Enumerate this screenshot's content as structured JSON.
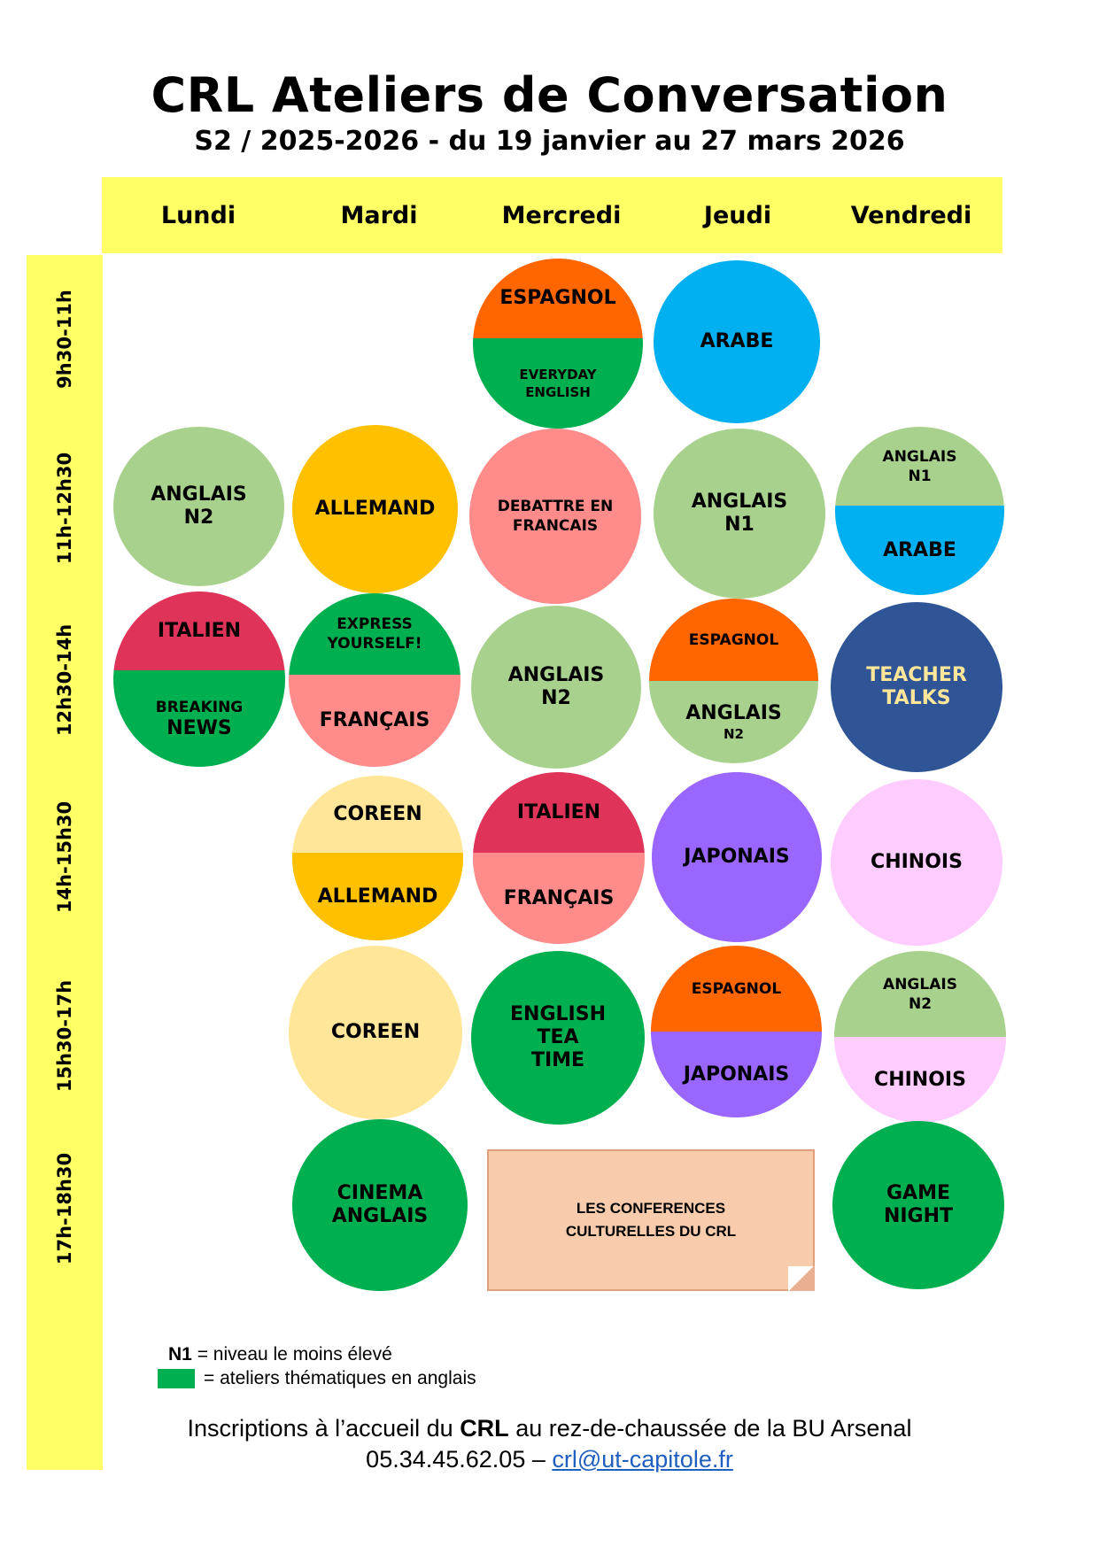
{
  "header": {
    "title": "CRL Ateliers de Conversation",
    "subtitle": "S2 / 2025-2026 - du 19 janvier au 27 mars 2026"
  },
  "days": [
    "Lundi",
    "Mardi",
    "Mercredi",
    "Jeudi",
    "Vendredi"
  ],
  "times": [
    "9h30-11h",
    "11h-12h30",
    "12h30-14h",
    "14h-15h30",
    "15h30-17h",
    "17h-18h30"
  ],
  "colors": {
    "highlight_yellow": "#ffff66",
    "espagnol": "#ff6600",
    "thematic_green": "#00b050",
    "arabe": "#00b0f0",
    "anglais": "#a9d18e",
    "allemand": "#ffc000",
    "francais": "#ff8b8b",
    "italien": "#e0335a",
    "teacher_talks": "#2f5597",
    "coreen": "#ffe699",
    "japonais": "#9966ff",
    "chinois": "#ffccff",
    "conference_box": "#f8cbad"
  },
  "sessions": {
    "mer_9h30": {
      "top": "ESPAGNOL",
      "bottom": "EVERYDAY\nENGLISH"
    },
    "jeu_9h30": {
      "label": "ARABE"
    },
    "lun_11h": {
      "label": "ANGLAIS\nN2"
    },
    "mar_11h": {
      "label": "ALLEMAND"
    },
    "mer_11h": {
      "label": "DEBATTRE EN\nFRANCAIS"
    },
    "jeu_11h": {
      "label": "ANGLAIS\nN1"
    },
    "ven_11h": {
      "top": "ANGLAIS\nN1",
      "bottom": "ARABE"
    },
    "lun_12h30": {
      "top": "ITALIEN",
      "bottom_a": "BREAKING",
      "bottom_b": "NEWS"
    },
    "mar_12h30": {
      "top": "EXPRESS\nYOURSELF!",
      "bottom": "FRANÇAIS"
    },
    "mer_12h30": {
      "label": "ANGLAIS\nN2"
    },
    "jeu_12h30": {
      "top": "ESPAGNOL",
      "bottom_a": "ANGLAIS",
      "bottom_b": "N2"
    },
    "ven_12h30": {
      "label": "TEACHER\nTALKS"
    },
    "mar_14h": {
      "top": "COREEN",
      "bottom": "ALLEMAND"
    },
    "mer_14h": {
      "top": "ITALIEN",
      "bottom": "FRANÇAIS"
    },
    "jeu_14h": {
      "label": "JAPONAIS"
    },
    "ven_14h": {
      "label": "CHINOIS"
    },
    "mar_15h30": {
      "label": "COREEN"
    },
    "mer_15h30": {
      "label": "ENGLISH\nTEA\nTIME"
    },
    "jeu_15h30": {
      "top": "ESPAGNOL",
      "bottom": "JAPONAIS"
    },
    "ven_15h30": {
      "top": "ANGLAIS\nN2",
      "bottom": "CHINOIS"
    },
    "mar_17h": {
      "label": "CINEMA\nANGLAIS"
    },
    "mer_jeu_17h": {
      "label": "LES CONFERENCES\nCULTURELLES DU CRL"
    },
    "ven_17h": {
      "label": "GAME\nNIGHT"
    }
  },
  "legend": {
    "n1_key": "N1",
    "n1_text": " = niveau le moins élevé",
    "green_text": "= ateliers thématiques en anglais"
  },
  "footer": {
    "line1_a": "Inscriptions à l’accueil du ",
    "line1_b": "CRL",
    "line1_c": " au rez-de-chaussée de la BU Arsenal",
    "phone": "05.34.45.62.05 – ",
    "email": "crl@ut-capitole.fr"
  }
}
